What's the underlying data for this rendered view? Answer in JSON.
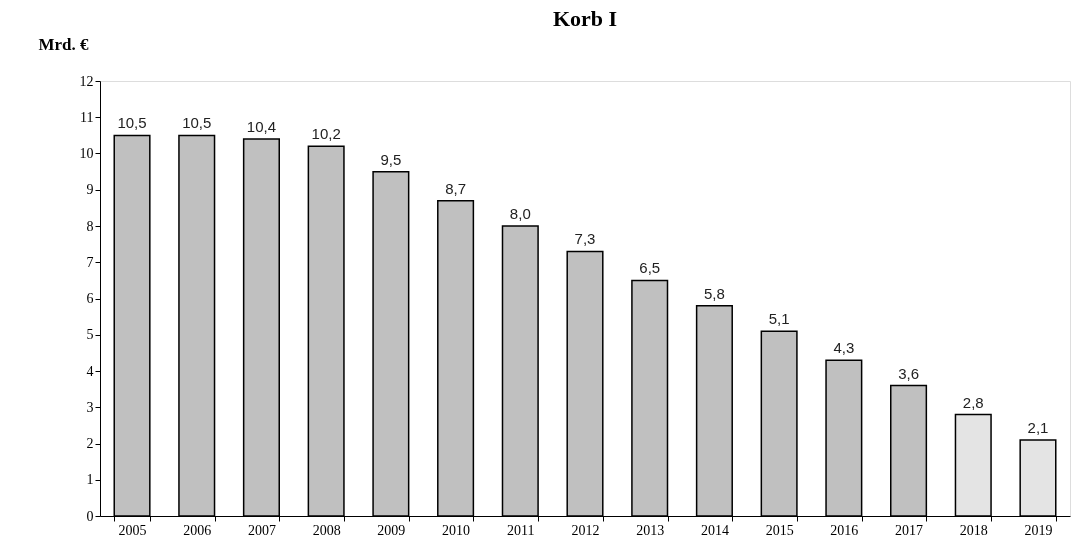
{
  "chart_data": {
    "type": "bar",
    "title": "Korb I",
    "ylabel": "Mrd. €",
    "categories": [
      "2005",
      "2006",
      "2007",
      "2008",
      "2009",
      "2010",
      "2011",
      "2012",
      "2013",
      "2014",
      "2015",
      "2016",
      "2017",
      "2018",
      "2019"
    ],
    "values": [
      10.5,
      10.5,
      10.4,
      10.2,
      9.5,
      8.7,
      8.0,
      7.3,
      6.5,
      5.8,
      5.1,
      4.3,
      3.6,
      2.8,
      2.1
    ],
    "value_labels": [
      "10,5",
      "10,5",
      "10,4",
      "10,2",
      "9,5",
      "8,7",
      "8,0",
      "7,3",
      "6,5",
      "5,8",
      "5,1",
      "4,3",
      "3,6",
      "2,8",
      "2,1"
    ],
    "colors": [
      "#c0c0c0",
      "#c0c0c0",
      "#c0c0c0",
      "#c0c0c0",
      "#c0c0c0",
      "#c0c0c0",
      "#c0c0c0",
      "#c0c0c0",
      "#c0c0c0",
      "#c0c0c0",
      "#c0c0c0",
      "#c0c0c0",
      "#c0c0c0",
      "#e4e4e4",
      "#e4e4e4"
    ],
    "ylim": [
      0,
      12
    ],
    "yticks": [
      0,
      1,
      2,
      3,
      4,
      5,
      6,
      7,
      8,
      9,
      10,
      11,
      12
    ],
    "grid": false
  }
}
